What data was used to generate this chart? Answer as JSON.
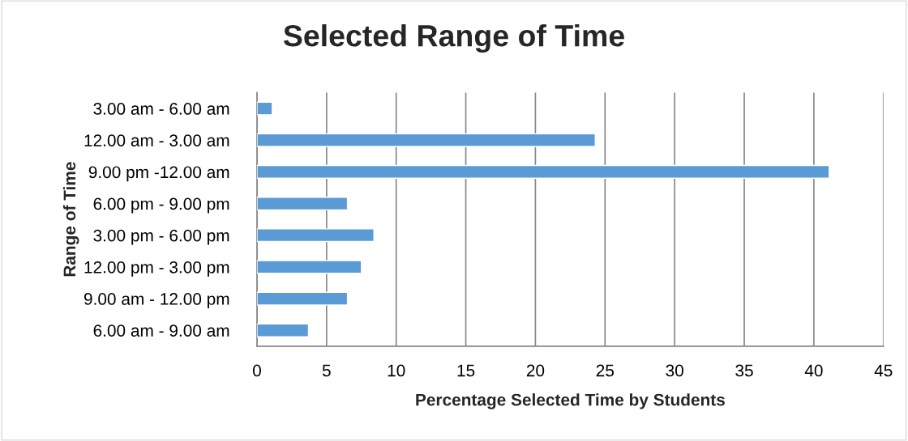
{
  "chart_data": {
    "type": "bar",
    "orientation": "horizontal",
    "title": "Selected Range of Time",
    "xlabel": "Percentage Selected Time by Students",
    "ylabel": "Range of Time",
    "categories": [
      "3.00 am - 6.00 am",
      "12.00 am - 3.00 am",
      "9.00 pm -12.00 am",
      "6.00 pm - 9.00 pm",
      "3.00 pm - 6.00 pm",
      "12.00 pm - 3.00 pm",
      "9.00 am - 12.00 pm",
      "6.00 am - 9.00 am"
    ],
    "values": [
      1.1,
      24.3,
      41.1,
      6.5,
      8.4,
      7.5,
      6.5,
      3.7
    ],
    "color": "#5b9bd5",
    "xlim": [
      0,
      45
    ],
    "xticks": [
      0,
      5,
      10,
      15,
      20,
      25,
      30,
      35,
      40,
      45
    ],
    "grid": "x",
    "legend": false
  }
}
